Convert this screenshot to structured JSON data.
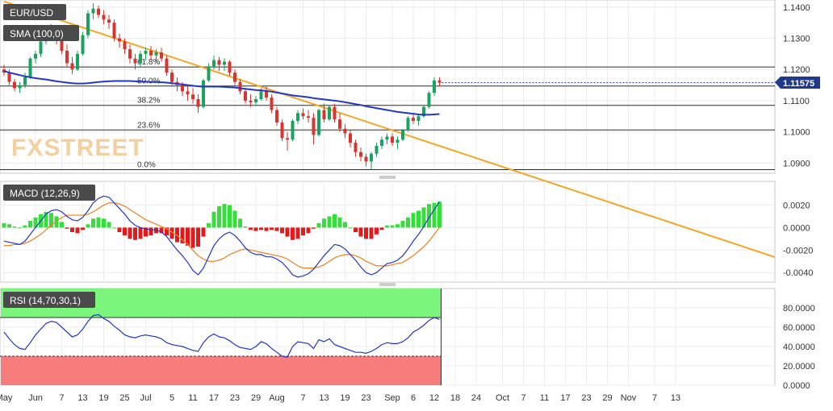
{
  "chart_data": [
    {
      "type": "candlestick",
      "title": "EUR/USD",
      "indicator_label": "SMA (100,0)",
      "watermark": "FXSTREET",
      "ylim": [
        1.0875,
        1.1415
      ],
      "yticks": [
        "1.0900",
        "1.1000",
        "1.1100",
        "1.1200",
        "1.1300",
        "1.1400"
      ],
      "last_price": "1.11575",
      "fibonacci": [
        {
          "label": "61.8%",
          "value": 1.1208
        },
        {
          "label": "50.0%",
          "value": 1.1147
        },
        {
          "label": "38.2%",
          "value": 1.1085
        },
        {
          "label": "23.6%",
          "value": 1.1006
        },
        {
          "label": "0.0%",
          "value": 1.0879
        }
      ],
      "trendline_color": "#f5a623",
      "sma_color": "#2238c4",
      "up_color": "#1aa260",
      "down_color": "#d9352e",
      "candles_ohlc": [
        [
          1.12,
          1.1215,
          1.118,
          1.119
        ],
        [
          1.119,
          1.12,
          1.115,
          1.116
        ],
        [
          1.116,
          1.117,
          1.113,
          1.114
        ],
        [
          1.114,
          1.116,
          1.1125,
          1.115
        ],
        [
          1.115,
          1.119,
          1.114,
          1.1175
        ],
        [
          1.1175,
          1.124,
          1.117,
          1.1235
        ],
        [
          1.1235,
          1.126,
          1.122,
          1.125
        ],
        [
          1.125,
          1.13,
          1.124,
          1.129
        ],
        [
          1.129,
          1.134,
          1.128,
          1.133
        ],
        [
          1.133,
          1.1345,
          1.13,
          1.132
        ],
        [
          1.132,
          1.133,
          1.128,
          1.13
        ],
        [
          1.13,
          1.1315,
          1.125,
          1.126
        ],
        [
          1.126,
          1.128,
          1.121,
          1.122
        ],
        [
          1.122,
          1.124,
          1.1185,
          1.12
        ],
        [
          1.12,
          1.126,
          1.1195,
          1.125
        ],
        [
          1.125,
          1.132,
          1.1245,
          1.131
        ],
        [
          1.131,
          1.139,
          1.13,
          1.138
        ],
        [
          1.138,
          1.1412,
          1.136,
          1.1395
        ],
        [
          1.1395,
          1.1405,
          1.1365,
          1.1375
        ],
        [
          1.1375,
          1.139,
          1.1345,
          1.136
        ],
        [
          1.136,
          1.1375,
          1.133,
          1.135
        ],
        [
          1.135,
          1.136,
          1.129,
          1.13
        ],
        [
          1.13,
          1.1315,
          1.127,
          1.129
        ],
        [
          1.129,
          1.13,
          1.125,
          1.1265
        ],
        [
          1.1265,
          1.128,
          1.122,
          1.1235
        ],
        [
          1.1235,
          1.125,
          1.12,
          1.122
        ],
        [
          1.122,
          1.126,
          1.121,
          1.125
        ],
        [
          1.125,
          1.127,
          1.123,
          1.126
        ],
        [
          1.126,
          1.1275,
          1.123,
          1.1245
        ],
        [
          1.1245,
          1.1265,
          1.122,
          1.1255
        ],
        [
          1.1255,
          1.127,
          1.1225,
          1.1235
        ],
        [
          1.1235,
          1.1245,
          1.118,
          1.119
        ],
        [
          1.119,
          1.12,
          1.115,
          1.116
        ],
        [
          1.116,
          1.1175,
          1.113,
          1.115
        ],
        [
          1.115,
          1.116,
          1.1115,
          1.113
        ],
        [
          1.113,
          1.115,
          1.11,
          1.112
        ],
        [
          1.112,
          1.114,
          1.109,
          1.1105
        ],
        [
          1.1105,
          1.112,
          1.106,
          1.108
        ],
        [
          1.108,
          1.117,
          1.1075,
          1.1165
        ],
        [
          1.1165,
          1.122,
          1.116,
          1.121
        ],
        [
          1.121,
          1.1245,
          1.12,
          1.123
        ],
        [
          1.123,
          1.124,
          1.1195,
          1.1215
        ],
        [
          1.1215,
          1.1235,
          1.1195,
          1.1225
        ],
        [
          1.1225,
          1.123,
          1.118,
          1.119
        ],
        [
          1.119,
          1.12,
          1.115,
          1.116
        ],
        [
          1.116,
          1.117,
          1.112,
          1.113
        ],
        [
          1.113,
          1.114,
          1.109,
          1.11
        ],
        [
          1.11,
          1.112,
          1.108,
          1.1095
        ],
        [
          1.1095,
          1.1115,
          1.1085,
          1.1105
        ],
        [
          1.1105,
          1.114,
          1.11,
          1.113
        ],
        [
          1.113,
          1.1145,
          1.11,
          1.111
        ],
        [
          1.111,
          1.112,
          1.106,
          1.107
        ],
        [
          1.107,
          1.108,
          1.102,
          1.103
        ],
        [
          1.103,
          1.104,
          1.097,
          1.098
        ],
        [
          1.098,
          1.1,
          1.094,
          1.0975
        ],
        [
          1.0975,
          1.104,
          1.097,
          1.1035
        ],
        [
          1.1035,
          1.107,
          1.1025,
          1.106
        ],
        [
          1.106,
          1.1075,
          1.104,
          1.105
        ],
        [
          1.105,
          1.107,
          1.103,
          1.1045
        ],
        [
          1.1045,
          1.106,
          1.096,
          1.099
        ],
        [
          1.099,
          1.1075,
          1.0985,
          1.107
        ],
        [
          1.107,
          1.109,
          1.103,
          1.104
        ],
        [
          1.104,
          1.1085,
          1.1035,
          1.108
        ],
        [
          1.108,
          1.109,
          1.103,
          1.104
        ],
        [
          1.104,
          1.106,
          1.1,
          1.101
        ],
        [
          1.101,
          1.1025,
          1.098,
          1.0995
        ],
        [
          1.0995,
          1.1005,
          1.095,
          1.0965
        ],
        [
          1.0965,
          1.0975,
          1.092,
          1.0935
        ],
        [
          1.0935,
          1.095,
          1.0905,
          1.092
        ],
        [
          1.092,
          1.093,
          1.089,
          1.0905
        ],
        [
          1.0905,
          1.0935,
          1.088,
          1.093
        ],
        [
          1.093,
          1.0965,
          1.092,
          1.0955
        ],
        [
          1.0955,
          1.0985,
          1.0945,
          1.0975
        ],
        [
          1.0975,
          1.0995,
          1.096,
          1.0985
        ],
        [
          1.0985,
          1.0995,
          1.0955,
          1.0965
        ],
        [
          1.0965,
          1.0985,
          1.0945,
          1.0975
        ],
        [
          1.0975,
          1.101,
          1.097,
          1.1005
        ],
        [
          1.1005,
          1.105,
          1.1,
          1.1045
        ],
        [
          1.1045,
          1.106,
          1.1025,
          1.1035
        ],
        [
          1.1035,
          1.1055,
          1.102,
          1.105
        ],
        [
          1.105,
          1.1085,
          1.1045,
          1.108
        ],
        [
          1.108,
          1.113,
          1.1075,
          1.1125
        ],
        [
          1.1125,
          1.1175,
          1.1115,
          1.1165
        ],
        [
          1.1165,
          1.1175,
          1.1145,
          1.11575
        ]
      ],
      "sma_values": [
        1.1195,
        1.119,
        1.1186,
        1.1182,
        1.1178,
        1.1175,
        1.1172,
        1.117,
        1.1168,
        1.1165,
        1.1162,
        1.116,
        1.1158,
        1.1156,
        1.1155,
        1.1155,
        1.1156,
        1.1158,
        1.116,
        1.1161,
        1.1162,
        1.1163,
        1.1163,
        1.1163,
        1.1163,
        1.1162,
        1.1161,
        1.1161,
        1.116,
        1.116,
        1.1159,
        1.1158,
        1.1156,
        1.1154,
        1.1152,
        1.115,
        1.1148,
        1.1146,
        1.1145,
        1.1145,
        1.1145,
        1.1145,
        1.1144,
        1.1143,
        1.1142,
        1.114,
        1.1138,
        1.1136,
        1.1134,
        1.1133,
        1.1131,
        1.1129,
        1.1126,
        1.1123,
        1.112,
        1.1117,
        1.1115,
        1.1113,
        1.1111,
        1.1108,
        1.1106,
        1.1104,
        1.1102,
        1.11,
        1.1098,
        1.1095,
        1.1092,
        1.1089,
        1.1086,
        1.1082,
        1.1079,
        1.1076,
        1.1073,
        1.107,
        1.1067,
        1.1064,
        1.1062,
        1.106,
        1.1058,
        1.1056,
        1.1055,
        1.1055,
        1.1056,
        1.1057
      ],
      "trendline": [
        [
          0,
          1.1418
        ],
        [
          83,
          1.0955
        ]
      ]
    },
    {
      "type": "bar+line",
      "title": "MACD (12,26,9)",
      "ylim": [
        -0.0047,
        0.0039
      ],
      "yticks": [
        "0.0020",
        "0.0000",
        "-0.0020",
        "-0.0040"
      ],
      "macd_color": "#2238c4",
      "signal_color": "#f07f1a",
      "macd": [
        -0.0012,
        -0.0013,
        -0.0014,
        -0.0015,
        -0.0012,
        -0.0006,
        0.0,
        0.0006,
        0.0012,
        0.0015,
        0.0016,
        0.0014,
        0.001,
        0.0007,
        0.0006,
        0.0009,
        0.0015,
        0.0022,
        0.0026,
        0.0028,
        0.0027,
        0.0022,
        0.0017,
        0.0012,
        0.0006,
        0.0002,
        0.0,
        -0.0001,
        -0.0002,
        -0.0002,
        -0.0004,
        -0.0008,
        -0.0014,
        -0.002,
        -0.0025,
        -0.0031,
        -0.0038,
        -0.0042,
        -0.0036,
        -0.0026,
        -0.0016,
        -0.001,
        -0.0006,
        -0.0004,
        -0.0007,
        -0.0012,
        -0.0018,
        -0.0022,
        -0.0024,
        -0.0024,
        -0.0026,
        -0.0026,
        -0.0028,
        -0.0031,
        -0.0036,
        -0.0042,
        -0.0044,
        -0.0043,
        -0.0041,
        -0.0037,
        -0.0031,
        -0.0025,
        -0.002,
        -0.0015,
        -0.0016,
        -0.0019,
        -0.0024,
        -0.0029,
        -0.0035,
        -0.004,
        -0.0042,
        -0.004,
        -0.0036,
        -0.0032,
        -0.0031,
        -0.0029,
        -0.0025,
        -0.0019,
        -0.0012,
        -0.0006,
        0.0001,
        0.0009,
        0.0016,
        0.0023
      ],
      "signal": [
        -0.0016,
        -0.0016,
        -0.0015,
        -0.0015,
        -0.0014,
        -0.0012,
        -0.0009,
        -0.0006,
        -0.0002,
        0.0002,
        0.0006,
        0.0009,
        0.0011,
        0.0011,
        0.0011,
        0.0011,
        0.0012,
        0.0014,
        0.0017,
        0.002,
        0.0022,
        0.0022,
        0.0021,
        0.0019,
        0.0016,
        0.0013,
        0.001,
        0.0007,
        0.0005,
        0.0003,
        0.0001,
        -0.0001,
        -0.0004,
        -0.0007,
        -0.0011,
        -0.0015,
        -0.002,
        -0.0025,
        -0.0028,
        -0.003,
        -0.003,
        -0.0029,
        -0.0027,
        -0.0024,
        -0.0022,
        -0.002,
        -0.0019,
        -0.002,
        -0.0021,
        -0.0022,
        -0.0023,
        -0.0024,
        -0.0025,
        -0.0026,
        -0.0028,
        -0.0031,
        -0.0034,
        -0.0036,
        -0.0036,
        -0.0036,
        -0.0035,
        -0.0033,
        -0.003,
        -0.0027,
        -0.0025,
        -0.0024,
        -0.0024,
        -0.0025,
        -0.0027,
        -0.003,
        -0.0032,
        -0.0034,
        -0.0034,
        -0.0034,
        -0.0033,
        -0.0032,
        -0.0031,
        -0.0028,
        -0.0025,
        -0.0021,
        -0.0017,
        -0.0012,
        -0.0006,
        0.0
      ],
      "hist_up_color": "#33e03a",
      "hist_down_color": "#e3191b"
    },
    {
      "type": "line",
      "title": "RSI (14,70,30,1)",
      "ylim": [
        0,
        100
      ],
      "yticks": [
        "80.0000",
        "60.0000",
        "40.0000",
        "20.0000",
        "0.0000"
      ],
      "overbought": 70,
      "oversold": 30,
      "overbought_color": "#7cf57c",
      "oversold_color": "#f77c7c",
      "line_color": "#2238c4",
      "rsi": [
        55,
        48,
        42,
        38,
        37,
        44,
        52,
        58,
        64,
        66,
        65,
        60,
        55,
        50,
        52,
        58,
        66,
        72,
        73,
        69,
        66,
        61,
        57,
        52,
        50,
        49,
        51,
        52,
        51,
        50,
        48,
        44,
        42,
        41,
        40,
        38,
        36,
        35,
        44,
        50,
        53,
        50,
        49,
        46,
        42,
        39,
        38,
        37,
        40,
        45,
        43,
        38,
        34,
        30,
        29,
        40,
        45,
        44,
        43,
        38,
        47,
        45,
        48,
        42,
        40,
        38,
        36,
        34,
        34,
        33,
        35,
        38,
        42,
        44,
        43,
        43,
        45,
        49,
        55,
        58,
        62,
        67,
        70,
        68
      ]
    }
  ],
  "x_axis": {
    "labels": [
      "May",
      "Jun",
      "7",
      "13",
      "19",
      "25",
      "Jul",
      "5",
      "11",
      "17",
      "23",
      "29",
      "Aug",
      "7",
      "13",
      "19",
      "23",
      "Sep",
      "6",
      "12",
      "18",
      "24",
      "Oct",
      "7",
      "11",
      "17",
      "23",
      "29",
      "Nov",
      "7",
      "13"
    ],
    "candle_index": [
      0,
      6,
      11,
      15,
      19,
      23,
      27,
      32,
      36,
      40,
      44,
      48,
      52,
      57,
      61,
      65,
      69,
      74,
      78,
      82,
      86,
      90,
      95,
      99,
      103,
      107,
      111,
      115,
      119,
      124,
      128
    ]
  }
}
